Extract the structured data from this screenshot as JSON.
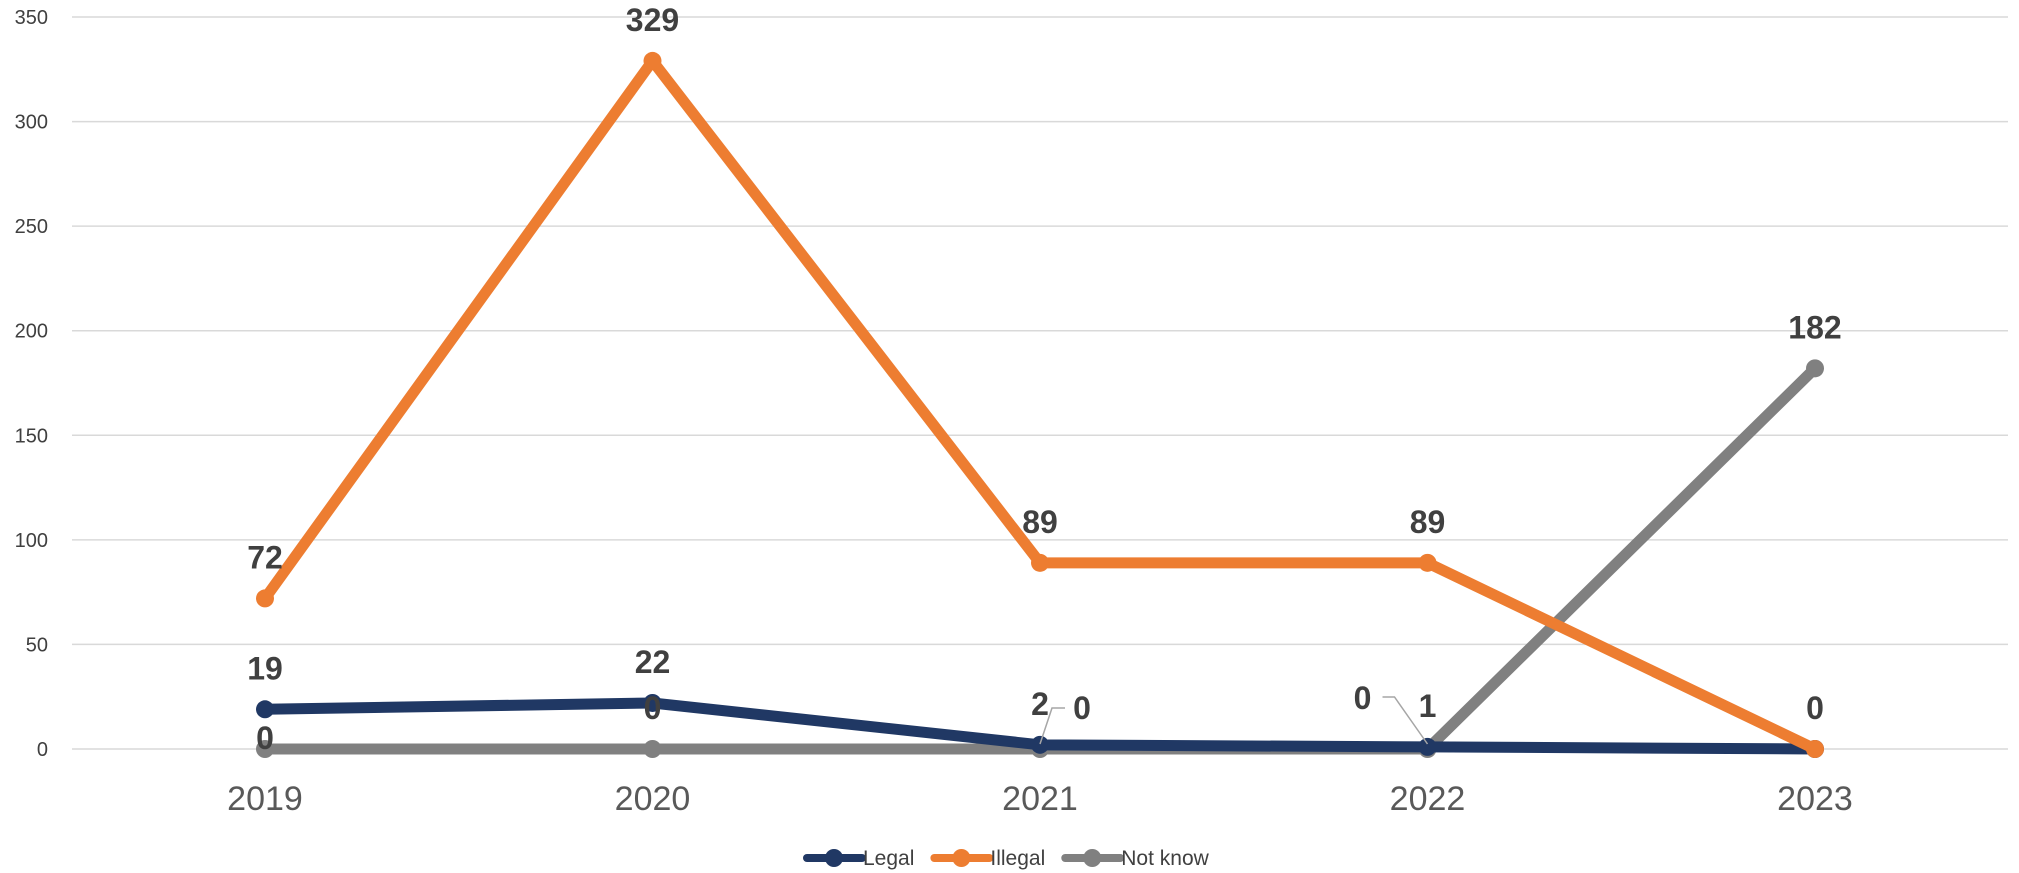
{
  "chart_data": {
    "type": "line",
    "title": "",
    "xlabel": "",
    "ylabel": "",
    "categories": [
      "2019",
      "2020",
      "2021",
      "2022",
      "2023"
    ],
    "ylim": [
      0,
      350
    ],
    "yticks": [
      0,
      50,
      100,
      150,
      200,
      250,
      300,
      350
    ],
    "grid": true,
    "legend_position": "bottom",
    "series": [
      {
        "name": "Legal",
        "color": "#203864",
        "values": [
          19,
          22,
          2,
          1,
          0
        ],
        "labels": [
          "19",
          "22",
          "2",
          "1",
          ""
        ]
      },
      {
        "name": "Illegal",
        "color": "#ED7D31",
        "values": [
          72,
          329,
          89,
          89,
          0
        ],
        "labels": [
          "72",
          "329",
          "89",
          "89",
          "0"
        ]
      },
      {
        "name": "Not know",
        "color": "#808080",
        "values": [
          0,
          0,
          0,
          0,
          182
        ],
        "labels": [
          "0",
          "0",
          "0",
          "0",
          "182"
        ]
      }
    ]
  }
}
